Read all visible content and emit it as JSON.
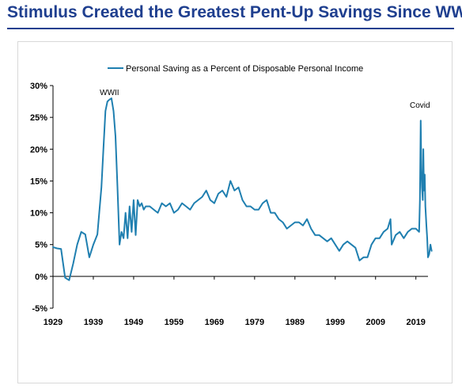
{
  "headline": "Stimulus Created the Greatest Pent-Up Savings Since WWII",
  "colors": {
    "headline": "#1f3f8f",
    "series": "#1f7fb0"
  },
  "chart_data": {
    "type": "line",
    "title": "",
    "xlabel": "",
    "ylabel": "",
    "xlim": [
      1929,
      2022
    ],
    "ylim": [
      -5,
      30
    ],
    "grid": false,
    "legend_position": "top-center",
    "x_ticks": [
      "1929",
      "1939",
      "1949",
      "1959",
      "1969",
      "1979",
      "1989",
      "1999",
      "2009",
      "2019"
    ],
    "y_ticks": [
      "30%",
      "25%",
      "20%",
      "15%",
      "10%",
      "5%",
      "0%",
      "-5%"
    ],
    "annotations": [
      {
        "text": "WWII",
        "x": 1943,
        "y": 29
      },
      {
        "text": "Covid",
        "x": 2020,
        "y": 27
      }
    ],
    "series": [
      {
        "name": "Personal Saving as a Percent of Disposable Personal Income",
        "x": [
          1929,
          1930,
          1931,
          1932,
          1933,
          1934,
          1935,
          1936,
          1937,
          1938,
          1939,
          1940,
          1941,
          1941.5,
          1942,
          1942.5,
          1943,
          1943.5,
          1944,
          1944.5,
          1945,
          1945.5,
          1946,
          1946.5,
          1947,
          1947.5,
          1948,
          1948.5,
          1949,
          1949.5,
          1950,
          1950.5,
          1951,
          1951.5,
          1952,
          1953,
          1954,
          1955,
          1956,
          1957,
          1958,
          1959,
          1960,
          1961,
          1962,
          1963,
          1964,
          1965,
          1966,
          1967,
          1968,
          1969,
          1970,
          1971,
          1972,
          1973,
          1974,
          1975,
          1976,
          1977,
          1978,
          1979,
          1980,
          1981,
          1982,
          1983,
          1984,
          1985,
          1986,
          1987,
          1988,
          1989,
          1990,
          1991,
          1992,
          1993,
          1994,
          1995,
          1996,
          1997,
          1998,
          1999,
          2000,
          2001,
          2002,
          2003,
          2004,
          2005,
          2006,
          2007,
          2008,
          2009,
          2010,
          2011,
          2012,
          2012.7,
          2013,
          2014,
          2015,
          2016,
          2017,
          2018,
          2019,
          2019.8,
          2020.0,
          2020.2,
          2020.35,
          2020.5,
          2020.7,
          2020.85,
          2021.0,
          2021.2,
          2021.35,
          2021.6,
          2021.8,
          2022.0,
          2022.3,
          2022.6,
          2022.9
        ],
        "y": [
          4.6,
          4.4,
          4.3,
          -0.2,
          -0.6,
          2.0,
          5.0,
          7.0,
          6.6,
          3.0,
          5.0,
          6.6,
          14.0,
          20.0,
          26.0,
          27.5,
          27.8,
          28.0,
          26.0,
          22.0,
          14.0,
          5.0,
          7.0,
          6.0,
          10.0,
          6.0,
          11.0,
          7.0,
          12.0,
          6.5,
          12.0,
          11.0,
          11.5,
          10.5,
          11.0,
          11.0,
          10.5,
          10.0,
          11.5,
          11.0,
          11.5,
          10.0,
          10.5,
          11.5,
          11.0,
          10.5,
          11.5,
          12.0,
          12.5,
          13.5,
          12.0,
          11.5,
          13.0,
          13.5,
          12.5,
          15.0,
          13.5,
          14.0,
          12.0,
          11.0,
          11.0,
          10.5,
          10.5,
          11.5,
          12.0,
          10.0,
          10.0,
          9.0,
          8.5,
          7.5,
          8.0,
          8.5,
          8.5,
          8.0,
          9.0,
          7.5,
          6.5,
          6.5,
          6.0,
          5.5,
          6.0,
          5.0,
          4.0,
          5.0,
          5.5,
          5.0,
          4.5,
          2.5,
          3.0,
          3.0,
          5.0,
          6.0,
          6.0,
          7.0,
          7.5,
          9.0,
          5.0,
          6.5,
          7.0,
          6.0,
          7.0,
          7.5,
          7.5,
          7.0,
          12.0,
          24.5,
          17.0,
          14.0,
          12.0,
          20.0,
          13.5,
          16.0,
          11.0,
          8.0,
          6.0,
          3.0,
          3.5,
          5.0,
          4.0
        ]
      }
    ]
  }
}
